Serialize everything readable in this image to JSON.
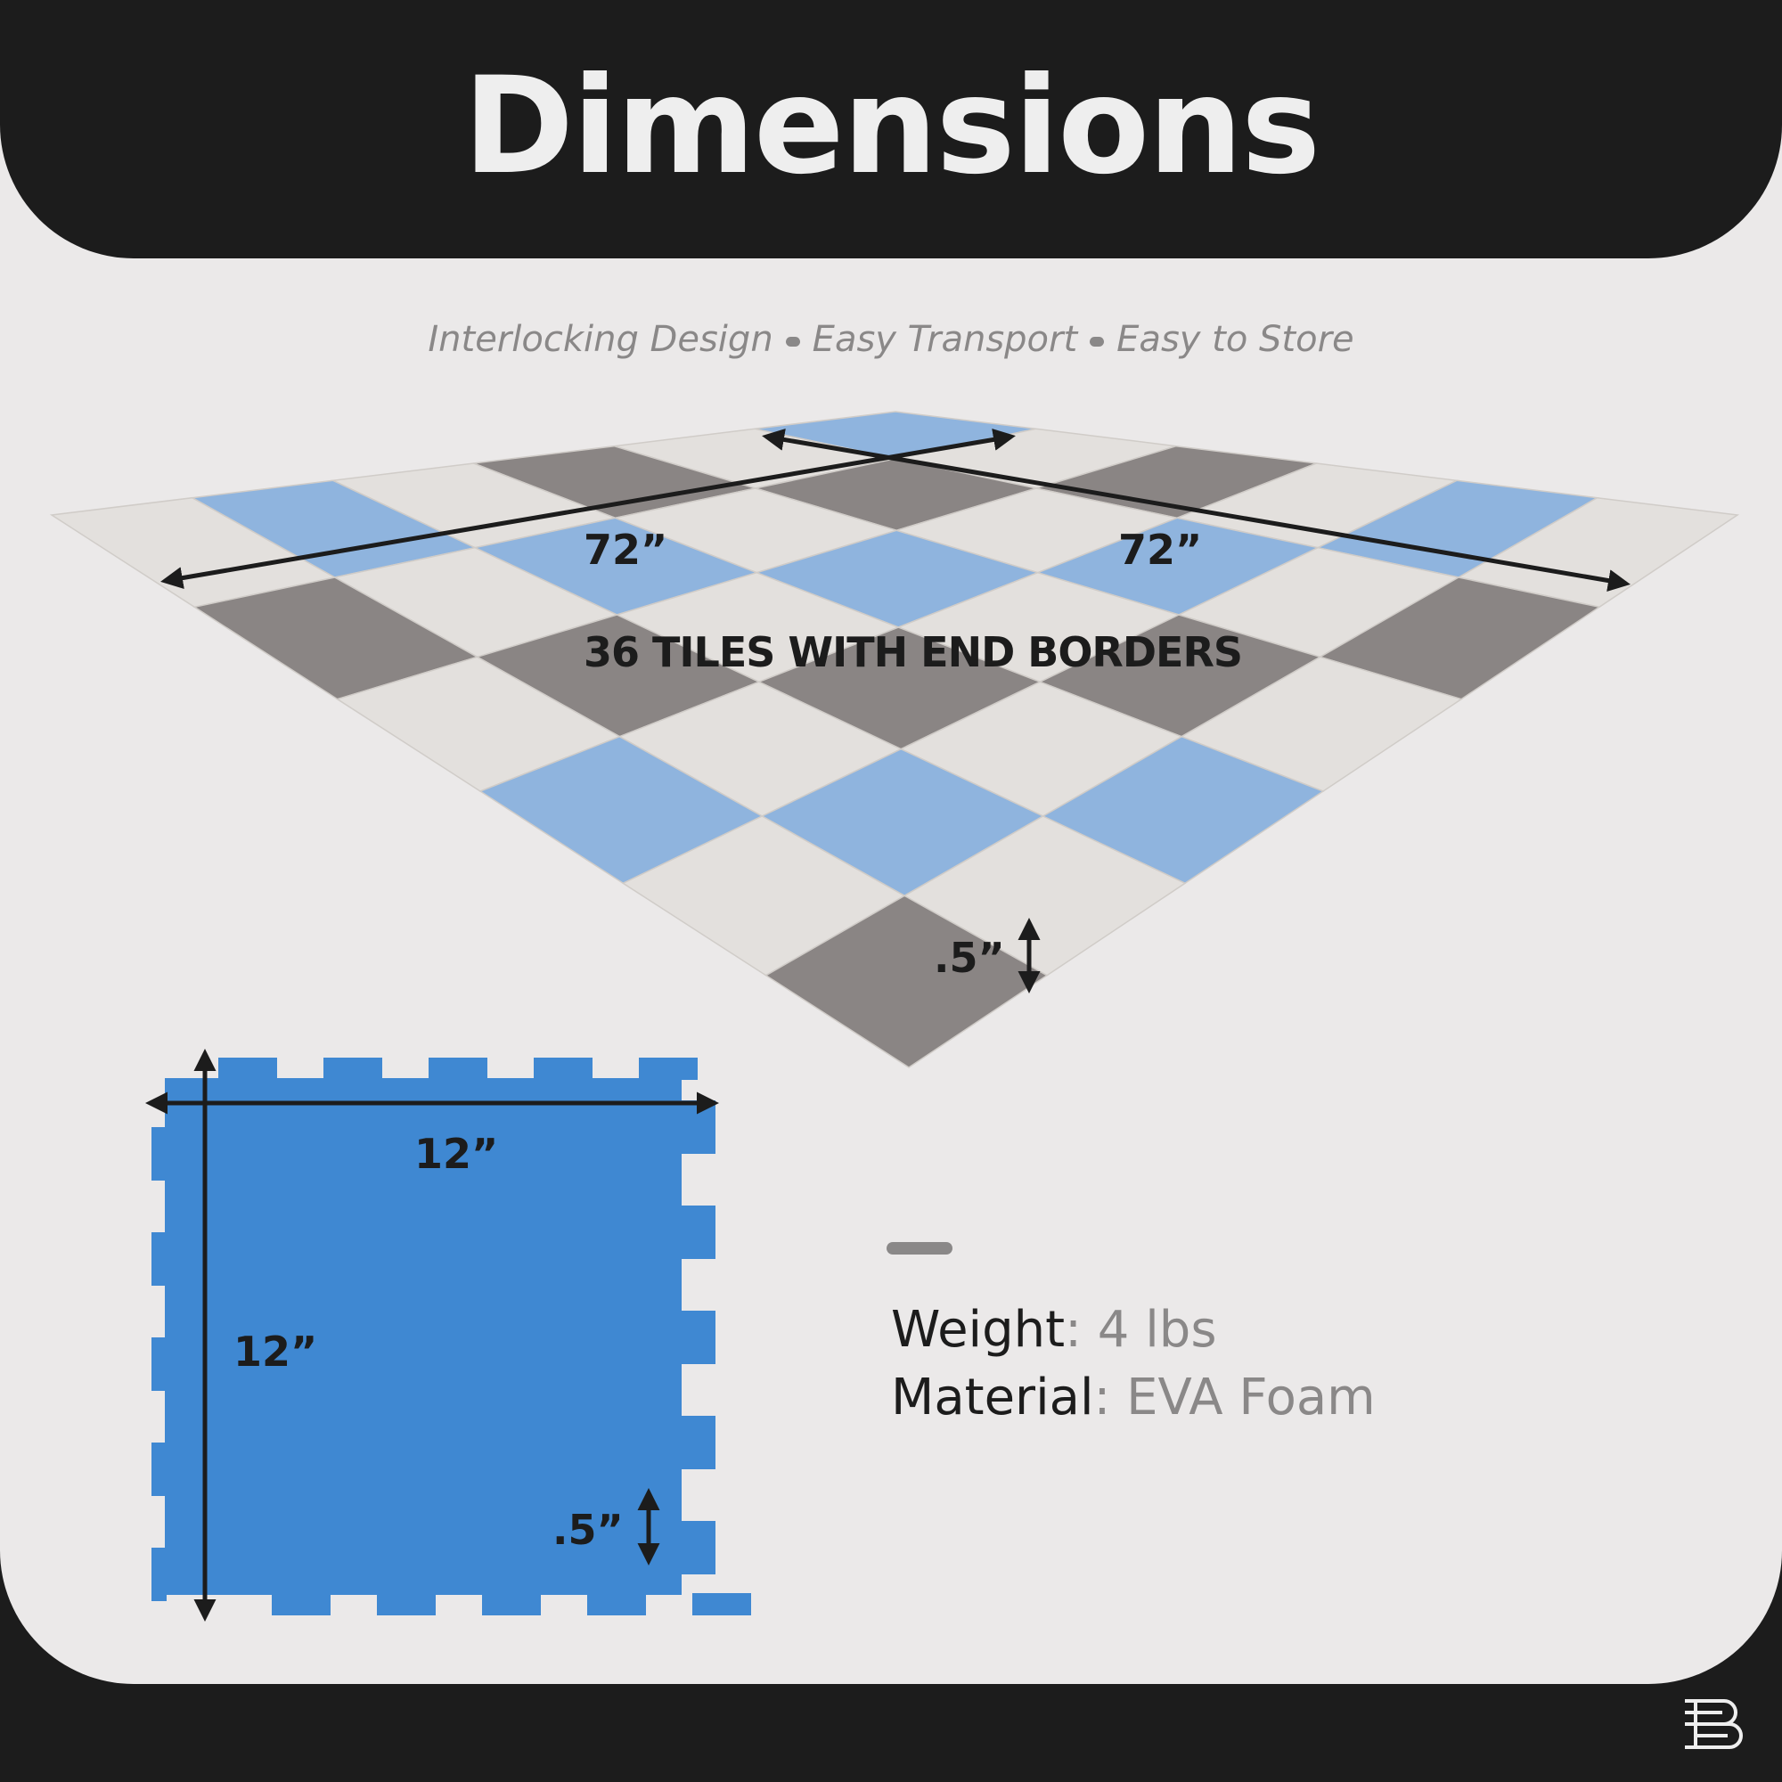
{
  "header": {
    "title": "Dimensions"
  },
  "subtitle": {
    "items": [
      "Interlocking Design",
      "Easy Transport",
      "Easy to Store"
    ]
  },
  "floor": {
    "width_label": "72”",
    "depth_label": "72”",
    "tiles_label": "36 TILES WITH END BORDERS",
    "thickness_label": ".5”",
    "colors": [
      "#8fb4de",
      "#8a8584",
      "#e3e0dd"
    ]
  },
  "tile": {
    "width_label": "12”",
    "height_label": "12”",
    "thickness_label": ".5”",
    "color": "#3f88d2"
  },
  "specs": {
    "weight_key": "Weight",
    "weight_value": "4 lbs",
    "material_key": "Material",
    "material_value": "EVA Foam"
  },
  "brand": {
    "logo": "B"
  }
}
